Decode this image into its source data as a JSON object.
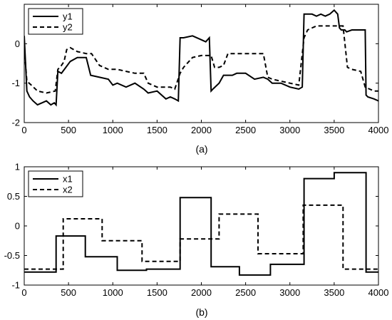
{
  "chart_data": [
    {
      "type": "line",
      "caption": "(a)",
      "xlim": [
        0,
        4000
      ],
      "ylim": [
        -2,
        1
      ],
      "xticks": [
        0,
        500,
        1000,
        1500,
        2000,
        2500,
        3000,
        3500,
        4000
      ],
      "yticks": [
        -2,
        -1,
        0
      ],
      "legend_position": "top-left",
      "series": [
        {
          "name": "y1",
          "style": "solid",
          "color": "#000000",
          "x": [
            0,
            30,
            60,
            100,
            150,
            200,
            250,
            300,
            340,
            360,
            380,
            420,
            470,
            520,
            600,
            700,
            750,
            850,
            950,
            1000,
            1050,
            1150,
            1250,
            1350,
            1400,
            1500,
            1600,
            1650,
            1700,
            1740,
            1760,
            1800,
            1900,
            2000,
            2050,
            2090,
            2110,
            2130,
            2200,
            2250,
            2300,
            2350,
            2400,
            2500,
            2600,
            2700,
            2750,
            2800,
            2900,
            3000,
            3100,
            3140,
            3160,
            3180,
            3250,
            3300,
            3350,
            3400,
            3450,
            3500,
            3540,
            3560,
            3580,
            3620,
            3640,
            3700,
            3750,
            3800,
            3850,
            3860,
            3880,
            3950,
            4000
          ],
          "y": [
            0.2,
            -1.2,
            -1.35,
            -1.45,
            -1.55,
            -1.5,
            -1.45,
            -1.55,
            -1.5,
            -1.55,
            -0.7,
            -0.75,
            -0.6,
            -0.45,
            -0.35,
            -0.35,
            -0.8,
            -0.85,
            -0.9,
            -1.05,
            -1.0,
            -1.1,
            -1.0,
            -1.15,
            -1.25,
            -1.2,
            -1.4,
            -1.35,
            -1.4,
            -1.45,
            0.15,
            0.15,
            0.2,
            0.1,
            0.05,
            0.15,
            -1.2,
            -1.15,
            -1.0,
            -0.8,
            -0.8,
            -0.8,
            -0.75,
            -0.75,
            -0.9,
            -0.85,
            -0.9,
            -1.0,
            -1.0,
            -1.1,
            -1.15,
            -1.1,
            0.75,
            0.75,
            0.75,
            0.7,
            0.75,
            0.7,
            0.75,
            0.85,
            0.75,
            0.4,
            0.35,
            0.35,
            0.3,
            0.35,
            0.35,
            0.35,
            0.35,
            -1.3,
            -1.35,
            -1.4,
            -1.45
          ]
        },
        {
          "name": "y2",
          "style": "dashed",
          "color": "#000000",
          "x": [
            0,
            30,
            80,
            150,
            250,
            350,
            380,
            420,
            450,
            480,
            520,
            600,
            700,
            760,
            850,
            950,
            1050,
            1150,
            1250,
            1350,
            1400,
            1500,
            1650,
            1700,
            1760,
            1800,
            1900,
            2000,
            2110,
            2150,
            2200,
            2250,
            2300,
            2400,
            2500,
            2600,
            2700,
            2750,
            2800,
            2900,
            3000,
            3100,
            3160,
            3200,
            3300,
            3400,
            3500,
            3600,
            3650,
            3700,
            3800,
            3850,
            3900,
            3950,
            4000
          ],
          "y": [
            -0.1,
            -0.95,
            -1.05,
            -1.2,
            -1.25,
            -1.2,
            -0.65,
            -0.55,
            -0.45,
            -0.15,
            -0.1,
            -0.2,
            -0.25,
            -0.25,
            -0.55,
            -0.65,
            -0.65,
            -0.7,
            -0.75,
            -0.75,
            -1.0,
            -1.1,
            -1.1,
            -1.15,
            -0.75,
            -0.6,
            -0.35,
            -0.3,
            -0.3,
            -0.6,
            -0.6,
            -0.55,
            -0.25,
            -0.25,
            -0.25,
            -0.25,
            -0.25,
            -0.85,
            -0.9,
            -0.95,
            -1.0,
            -1.05,
            0.15,
            0.35,
            0.45,
            0.45,
            0.45,
            0.45,
            -0.6,
            -0.65,
            -0.7,
            -1.1,
            -1.15,
            -1.2,
            -1.2
          ]
        }
      ]
    },
    {
      "type": "line",
      "caption": "(b)",
      "xlim": [
        0,
        4000
      ],
      "ylim": [
        -1,
        1
      ],
      "xticks": [
        0,
        500,
        1000,
        1500,
        2000,
        2500,
        3000,
        3500,
        4000
      ],
      "yticks": [
        -1,
        -0.5,
        0,
        0.5,
        1
      ],
      "legend_position": "top-left",
      "series": [
        {
          "name": "x1",
          "style": "solid",
          "color": "#000000",
          "x": [
            0,
            360,
            360,
            690,
            690,
            1050,
            1050,
            1380,
            1380,
            1760,
            1760,
            2110,
            2110,
            2430,
            2430,
            2780,
            2780,
            3160,
            3160,
            3500,
            3500,
            3860,
            3860,
            4000
          ],
          "y": [
            -0.78,
            -0.78,
            -0.17,
            -0.17,
            -0.52,
            -0.52,
            -0.75,
            -0.75,
            -0.73,
            -0.73,
            0.48,
            0.48,
            -0.69,
            -0.69,
            -0.83,
            -0.83,
            -0.65,
            -0.65,
            0.8,
            0.8,
            0.9,
            0.9,
            -0.78,
            -0.78
          ]
        },
        {
          "name": "x2",
          "style": "dashed",
          "color": "#000000",
          "x": [
            0,
            440,
            440,
            880,
            880,
            1330,
            1330,
            1760,
            1760,
            2200,
            2200,
            2640,
            2640,
            3150,
            3150,
            3600,
            3600,
            4000
          ],
          "y": [
            -0.73,
            -0.73,
            0.12,
            0.12,
            -0.25,
            -0.25,
            -0.6,
            -0.6,
            -0.22,
            -0.22,
            0.2,
            0.2,
            -0.47,
            -0.47,
            0.35,
            0.35,
            -0.73,
            -0.73
          ]
        }
      ]
    }
  ]
}
